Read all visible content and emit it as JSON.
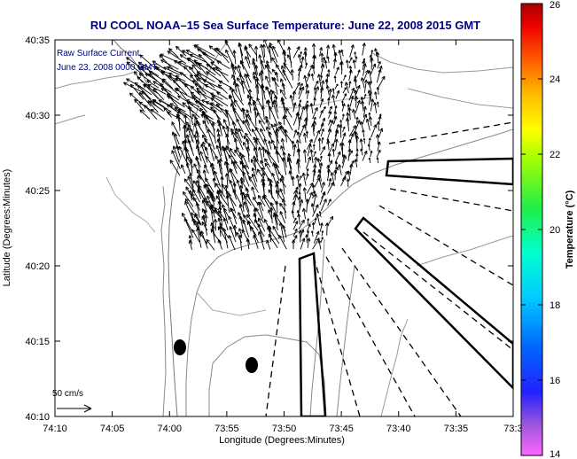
{
  "chart_data": {
    "type": "map",
    "title": "RU COOL   NOAA–15  Sea Surface Temperature:  June 22, 2008 2015 GMT",
    "overlay_title": "Raw Surface Current",
    "overlay_subtitle": "June 23, 2008 0000 GMT",
    "xlabel": "Longitude (Degrees:Minutes)",
    "ylabel": "Latitude (Degrees:Minutes)",
    "x_ticks": [
      "74:10",
      "74:05",
      "74:00",
      "73:55",
      "73:50",
      "73:45",
      "73:40",
      "73:35",
      "73:3"
    ],
    "y_ticks": [
      "40:35",
      "40:30",
      "40:25",
      "40:20",
      "40:15",
      "40:10"
    ],
    "scale_label": "50 cm/s",
    "colorbar": {
      "label": "Temperature (°C)",
      "min": 14,
      "max": 26,
      "ticks": [
        "26",
        "24",
        "22",
        "20",
        "18",
        "16",
        "14"
      ]
    },
    "colors": {
      "title": "#000080",
      "frame": "#000000",
      "contour": "#7a7a7a"
    }
  }
}
